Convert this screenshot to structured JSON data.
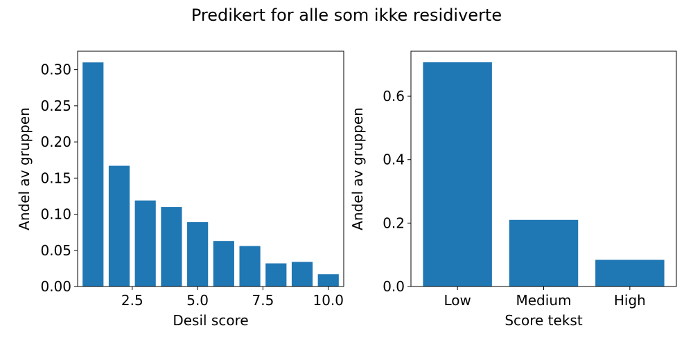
{
  "figure": {
    "suptitle": "Predikert for alle som ikke residiverte",
    "bar_color": "#1f77b4"
  },
  "chart_data": [
    {
      "type": "bar",
      "x": [
        1,
        2,
        3,
        4,
        5,
        6,
        7,
        8,
        9,
        10
      ],
      "values": [
        0.31,
        0.167,
        0.119,
        0.11,
        0.089,
        0.063,
        0.056,
        0.032,
        0.034,
        0.017
      ],
      "xlabel": "Desil score",
      "ylabel": "Andel av gruppen",
      "xlim": [
        0.41,
        10.59
      ],
      "ylim": [
        0,
        0.3255
      ],
      "xticks": [
        2.5,
        5.0,
        7.5,
        10.0
      ],
      "xtick_labels": [
        "2.5",
        "5.0",
        "7.5",
        "10.0"
      ],
      "yticks": [
        0.0,
        0.05,
        0.1,
        0.15,
        0.2,
        0.25,
        0.3
      ],
      "ytick_labels": [
        "0.00",
        "0.05",
        "0.10",
        "0.15",
        "0.20",
        "0.25",
        "0.30"
      ],
      "grid": false
    },
    {
      "type": "bar",
      "categories": [
        "Low",
        "Medium",
        "High"
      ],
      "values": [
        0.707,
        0.21,
        0.084
      ],
      "xlabel": "Score tekst",
      "ylabel": "Andel av gruppen",
      "ylim": [
        0,
        0.742
      ],
      "yticks": [
        0.0,
        0.2,
        0.4,
        0.6
      ],
      "ytick_labels": [
        "0.0",
        "0.2",
        "0.4",
        "0.6"
      ],
      "grid": false
    }
  ]
}
